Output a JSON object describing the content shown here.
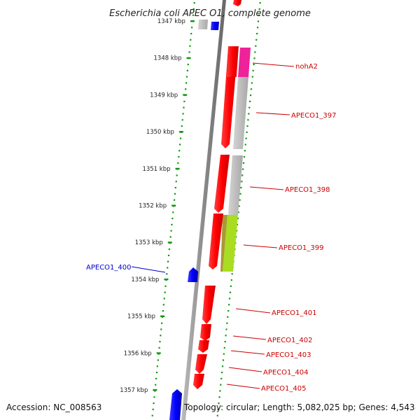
{
  "title": "Escherichia coli APEC O1, complete genome",
  "footer": {
    "accession": "Accession: NC_008563",
    "topology": "Topology: circular; Length: 5,082,025 bp; Genes: 4,543"
  },
  "colors": {
    "forward_gene": "#ff0000",
    "reverse_gene": "#0000ff",
    "label_forward": "#cc0000",
    "label_reverse": "#0000cc",
    "backbone": "#888888",
    "tick": "#119911",
    "blast_grey": "#bbbbbb",
    "blast_magenta": "#ee2299",
    "blast_lime": "#aadd22"
  },
  "ticks": [
    {
      "label": "1347 kbp",
      "kbp": 1347
    },
    {
      "label": "1348 kbp",
      "kbp": 1348
    },
    {
      "label": "1349 kbp",
      "kbp": 1349
    },
    {
      "label": "1350 kbp",
      "kbp": 1350
    },
    {
      "label": "1351 kbp",
      "kbp": 1351
    },
    {
      "label": "1352 kbp",
      "kbp": 1352
    },
    {
      "label": "1353 kbp",
      "kbp": 1353
    },
    {
      "label": "1354 kbp",
      "kbp": 1354
    },
    {
      "label": "1355 kbp",
      "kbp": 1355
    },
    {
      "label": "1356 kbp",
      "kbp": 1356
    },
    {
      "label": "1357 kbp",
      "kbp": 1357
    }
  ],
  "gene_labels": [
    {
      "name": "nohA2",
      "strand": "+"
    },
    {
      "name": "APECO1_397",
      "strand": "+"
    },
    {
      "name": "APECO1_398",
      "strand": "+"
    },
    {
      "name": "APECO1_399",
      "strand": "+"
    },
    {
      "name": "APECO1_400",
      "strand": "-"
    },
    {
      "name": "APECO1_401",
      "strand": "+"
    },
    {
      "name": "APECO1_402",
      "strand": "+"
    },
    {
      "name": "APECO1_403",
      "strand": "+"
    },
    {
      "name": "APECO1_404",
      "strand": "+"
    },
    {
      "name": "APECO1_405",
      "strand": "+"
    }
  ]
}
